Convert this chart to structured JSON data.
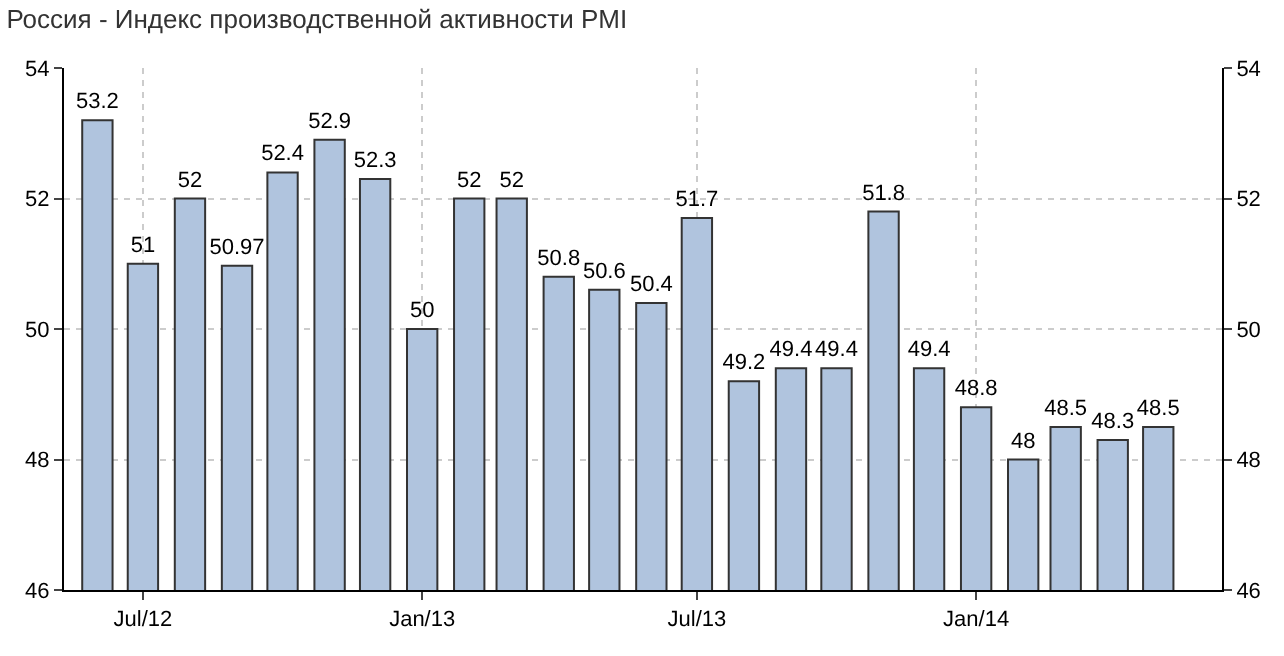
{
  "chart_data": {
    "type": "bar",
    "title": "Россия - Индекс производственной активности PMI",
    "x": [
      "2012-06",
      "2012-07",
      "2012-08",
      "2012-09",
      "2012-10",
      "2012-11",
      "2012-12",
      "2013-01",
      "2013-02",
      "2013-03",
      "2013-04",
      "2013-05",
      "2013-06",
      "2013-07",
      "2013-08",
      "2013-09",
      "2013-10",
      "2013-11",
      "2013-12",
      "2014-01",
      "2014-02",
      "2014-03",
      "2014-04",
      "2014-05"
    ],
    "values": [
      53.2,
      51,
      52,
      50.97,
      52.4,
      52.9,
      52.3,
      50,
      52,
      52,
      50.8,
      50.6,
      50.4,
      51.7,
      49.2,
      49.4,
      49.4,
      51.8,
      49.4,
      48.8,
      48,
      48.5,
      48.3,
      48.5
    ],
    "color": "#b0c4de",
    "data_labels": true,
    "xlim": [
      "2012-05-10",
      "2014-06-12"
    ],
    "xticks": [
      {
        "value": "2012-07",
        "label": "Jul/12"
      },
      {
        "value": "2013-01",
        "label": "Jan/13"
      },
      {
        "value": "2013-07",
        "label": "Jul/13"
      },
      {
        "value": "2014-01",
        "label": "Jan/14"
      }
    ],
    "ylim": [
      46,
      54
    ],
    "yticks": [
      46,
      48,
      50,
      52,
      54
    ],
    "y2lim": [
      46,
      54
    ],
    "y2ticks": [
      46,
      48,
      50,
      52,
      54
    ],
    "grid": true
  }
}
